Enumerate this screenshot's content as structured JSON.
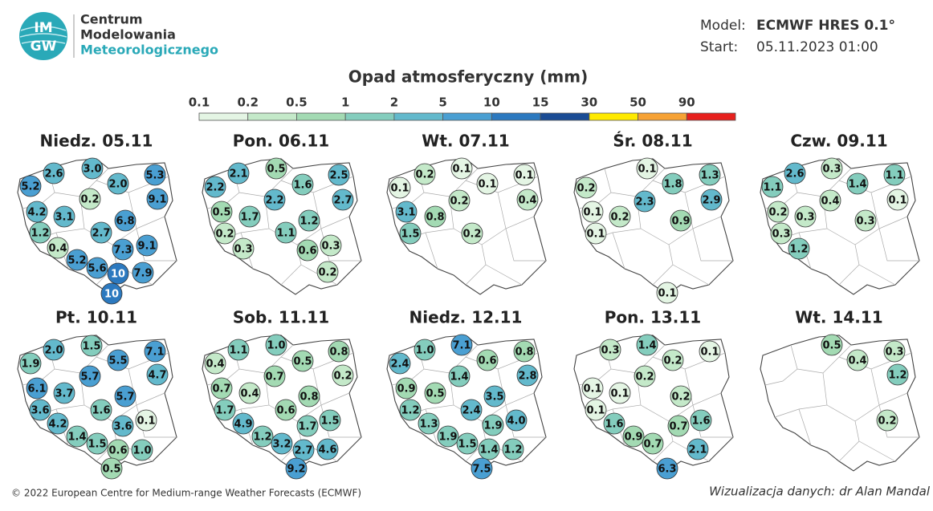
{
  "header": {
    "logo": {
      "top": "IM",
      "bottom": "GW"
    },
    "org": [
      "Centrum",
      "Modelowania",
      "Meteorologicznego"
    ],
    "model_label": "Model:",
    "model": "ECMWF HRES 0.1°",
    "start_label": "Start:",
    "start": "05.11.2023 01:00"
  },
  "legend": {
    "title": "Opad atmosferyczny (mm)",
    "ticks": [
      0.1,
      0.2,
      0.5,
      1,
      2,
      5,
      10,
      15,
      30,
      50,
      90
    ],
    "colors": [
      "#e4f5e4",
      "#c4e9c9",
      "#a3dab3",
      "#84cdbd",
      "#63b9cc",
      "#4a9fd2",
      "#2c79bf",
      "#1b4c94",
      "#ffea00",
      "#f6a235",
      "#e6201d"
    ]
  },
  "maps": [
    {
      "title": "Niedz. 05.11",
      "points": [
        "2.6",
        "3.0",
        "5.3",
        "5.2",
        "2.0",
        "9.1",
        "0.2",
        "4.2",
        "3.1",
        "6.8",
        "1.2",
        "2.7",
        "0.4",
        "7.3",
        "9.1",
        "5.2",
        "5.6",
        "10",
        "7.9",
        "10"
      ]
    },
    {
      "title": "Pon. 06.11",
      "points": [
        "2.1",
        "0.5",
        "2.5",
        "2.2",
        "1.6",
        "2.7",
        "2.2",
        "0.5",
        "1.7",
        "1.2",
        "0.2",
        "1.1",
        "0.3",
        "0.3",
        "0.6",
        "0.2"
      ]
    },
    {
      "title": "Wt. 07.11",
      "points": [
        "0.2",
        "0.1",
        "0.1",
        "0.1",
        "0.1",
        "0.4",
        "0.2",
        "3.1",
        "0.8",
        "0.2",
        "1.5"
      ]
    },
    {
      "title": "Śr. 08.11",
      "points": [
        "0.1",
        "1.3",
        "0.2",
        "1.8",
        "2.9",
        "2.3",
        "0.1",
        "0.2",
        "0.9",
        "0.1",
        "0.1"
      ]
    },
    {
      "title": "Czw. 09.11",
      "points": [
        "2.6",
        "0.3",
        "1.1",
        "1.1",
        "1.4",
        "0.1",
        "0.4",
        "0.2",
        "0.3",
        "0.3",
        "0.3",
        "1.2"
      ]
    },
    {
      "title": "Pt. 10.11",
      "points": [
        "1.5",
        "2.0",
        "7.1",
        "1.9",
        "5.5",
        "4.7",
        "5.7",
        "6.1",
        "3.7",
        "5.7",
        "3.6",
        "1.6",
        "4.2",
        "3.6",
        "0.1",
        "1.4",
        "1.5",
        "0.6",
        "1.0",
        "0.5"
      ]
    },
    {
      "title": "Sob. 11.11",
      "points": [
        "1.1",
        "1.0",
        "0.8",
        "0.4",
        "0.5",
        "0.2",
        "0.7",
        "0.7",
        "0.4",
        "0.8",
        "1.7",
        "0.6",
        "1.5",
        "1.7",
        "4.9",
        "1.2",
        "3.2",
        "2.7",
        "4.6",
        "9.2"
      ]
    },
    {
      "title": "Niedz. 12.11",
      "points": [
        "1.0",
        "7.1",
        "0.8",
        "2.4",
        "0.6",
        "2.8",
        "1.4",
        "0.9",
        "0.5",
        "3.5",
        "1.2",
        "2.4",
        "4.0",
        "1.9",
        "1.3",
        "1.9",
        "1.5",
        "1.4",
        "1.2",
        "7.5"
      ]
    },
    {
      "title": "Pon. 13.11",
      "points": [
        "0.3",
        "1.4",
        "0.1",
        "0.2",
        "0.2",
        "0.1",
        "0.1",
        "0.2",
        "0.1",
        "1.6",
        "1.6",
        "0.7",
        "0.9",
        "0.7",
        "2.1",
        "6.3"
      ]
    },
    {
      "title": "Wt. 14.11",
      "points": [
        "0.5",
        "0.3",
        "0.4",
        "1.2",
        "0.2"
      ]
    }
  ],
  "footer": {
    "copyright": "© 2022 European Centre for Medium-range Weather Forecasts (ECMWF)",
    "credit": "Wizualizacja danych: dr Alan Mandal"
  }
}
